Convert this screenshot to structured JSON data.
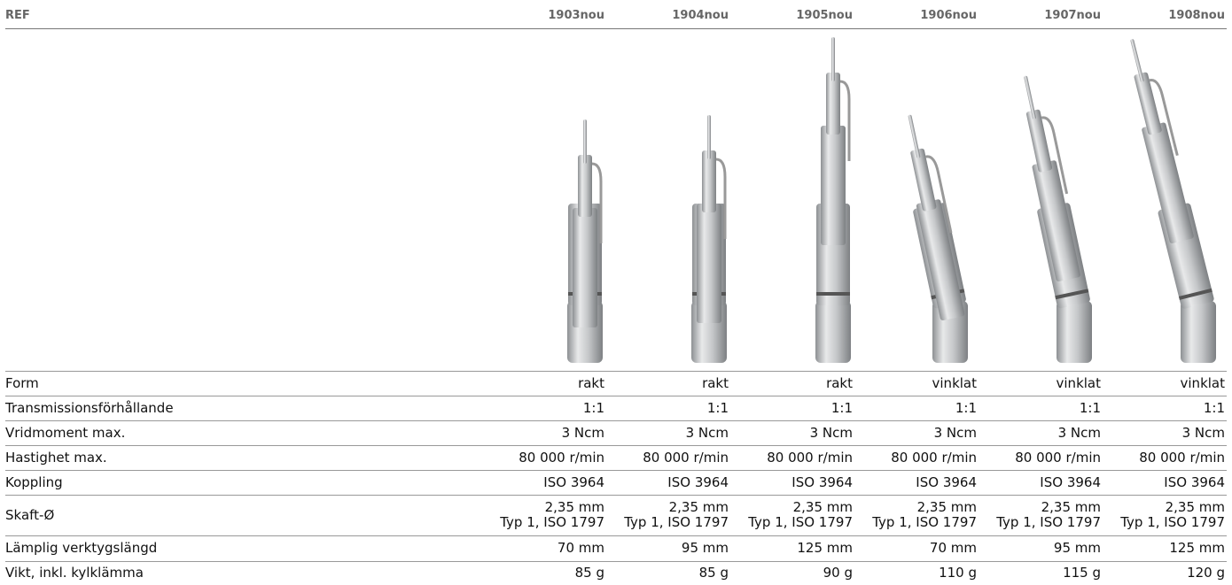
{
  "header": {
    "ref": "REF",
    "columns": [
      "1903nou",
      "1904nou",
      "1905nou",
      "1906nou",
      "1907nou",
      "1908nou"
    ]
  },
  "rows": [
    {
      "label": "Form",
      "values": [
        "rakt",
        "rakt",
        "rakt",
        "vinklat",
        "vinklat",
        "vinklat"
      ]
    },
    {
      "label": "Transmissionsförhållande",
      "values": [
        "1:1",
        "1:1",
        "1:1",
        "1:1",
        "1:1",
        "1:1"
      ]
    },
    {
      "label": "Vridmoment max.",
      "values": [
        "3 Ncm",
        "3 Ncm",
        "3 Ncm",
        "3 Ncm",
        "3 Ncm",
        "3 Ncm"
      ]
    },
    {
      "label": "Hastighet max.",
      "values": [
        "80 000 r/min",
        "80 000 r/min",
        "80 000 r/min",
        "80 000 r/min",
        "80 000 r/min",
        "80 000 r/min"
      ]
    },
    {
      "label": "Koppling",
      "values": [
        "ISO 3964",
        "ISO 3964",
        "ISO 3964",
        "ISO 3964",
        "ISO 3964",
        "ISO 3964"
      ]
    },
    {
      "label": "Skaft-Ø",
      "values": [
        [
          "2,35 mm",
          "Typ 1, ISO 1797"
        ],
        [
          "2,35 mm",
          "Typ 1, ISO 1797"
        ],
        [
          "2,35 mm",
          "Typ 1, ISO 1797"
        ],
        [
          "2,35 mm",
          "Typ 1, ISO 1797"
        ],
        [
          "2,35 mm",
          "Typ 1, ISO 1797"
        ],
        [
          "2,35 mm",
          "Typ 1, ISO 1797"
        ]
      ]
    },
    {
      "label": "Lämplig verktygslängd",
      "values": [
        "70 mm",
        "95 mm",
        "125 mm",
        "70 mm",
        "95 mm",
        "125 mm"
      ]
    },
    {
      "label": "Vikt, inkl. kylklämma",
      "values": [
        "85 g",
        "85 g",
        "90 g",
        "110 g",
        "115 g",
        "120 g"
      ]
    }
  ]
}
